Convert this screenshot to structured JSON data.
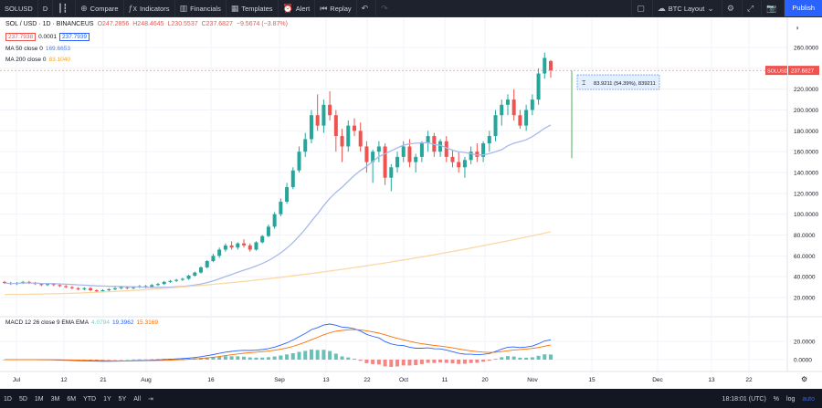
{
  "toolbar": {
    "symbol": "SOLUSD",
    "interval": "D",
    "compare": "Compare",
    "indicators": "Indicators",
    "financials": "Financials",
    "templates": "Templates",
    "alert": "Alert",
    "replay": "Replay",
    "layout": "BTC Layout",
    "publish": "Publish"
  },
  "legend": {
    "title": "SOL / USD · 1D · BINANCEUS",
    "o": "O247.2856",
    "h": "H248.4645",
    "l": "L230.5537",
    "c": "C237.6827",
    "chg": "−9.5674 (−3.87%)",
    "bid": "237.7938",
    "spread": "0.0001",
    "ask": "237.7939",
    "ma50_label": "MA 50 close 0",
    "ma50_value": "169.6653",
    "ma200_label": "MA 200 close 0",
    "ma200_value": "83.1040",
    "macd_label": "MACD 12 26 close 9 EMA EMA",
    "macd_hist": "4.0794",
    "macd_line": "19.3962",
    "macd_signal": "15.3169"
  },
  "price_axis": [
    "260.0000",
    "240.0000",
    "220.0000",
    "200.0000",
    "180.0000",
    "160.0000",
    "140.0000",
    "120.0000",
    "100.0000",
    "80.0000",
    "60.0000",
    "40.0000",
    "20.0000"
  ],
  "macd_axis": [
    "20.0000",
    "0.0000"
  ],
  "price_tag": {
    "symbol": "SOLUSD",
    "value": "237.6827"
  },
  "measure": {
    "text": "83.9211 (54.39%), 839211"
  },
  "time_axis": [
    "Jul",
    "12",
    "21",
    "Aug",
    "16",
    "Sep",
    "13",
    "22",
    "Oct",
    "11",
    "20",
    "Nov",
    "15",
    "Dec",
    "13",
    "22"
  ],
  "ranges": [
    "1D",
    "5D",
    "1M",
    "3M",
    "6M",
    "YTD",
    "1Y",
    "5Y",
    "All"
  ],
  "status": {
    "time": "18:18:01 (UTC)",
    "percent": "%",
    "log": "log",
    "auto": "auto"
  },
  "chart_data": {
    "type": "candlestick",
    "candles": [
      [
        35,
        36,
        33,
        34
      ],
      [
        34,
        35,
        32,
        33
      ],
      [
        33,
        35,
        32,
        34
      ],
      [
        34,
        36,
        33,
        35
      ],
      [
        35,
        36,
        33,
        34
      ],
      [
        34,
        35,
        32,
        33
      ],
      [
        33,
        34,
        31,
        32
      ],
      [
        32,
        34,
        31,
        33
      ],
      [
        33,
        34,
        31,
        32
      ],
      [
        32,
        33,
        30,
        31
      ],
      [
        31,
        32,
        29,
        30
      ],
      [
        30,
        31,
        28,
        29
      ],
      [
        29,
        30,
        27,
        28
      ],
      [
        28,
        30,
        27,
        29
      ],
      [
        29,
        30,
        26,
        27
      ],
      [
        27,
        28,
        25,
        26
      ],
      [
        26,
        28,
        25,
        27
      ],
      [
        27,
        29,
        26,
        28
      ],
      [
        28,
        30,
        27,
        29
      ],
      [
        29,
        31,
        28,
        30
      ],
      [
        30,
        31,
        28,
        29
      ],
      [
        29,
        31,
        28,
        30
      ],
      [
        30,
        32,
        29,
        31
      ],
      [
        31,
        32,
        29,
        30
      ],
      [
        30,
        33,
        29,
        32
      ],
      [
        32,
        34,
        31,
        33
      ],
      [
        33,
        36,
        32,
        35
      ],
      [
        35,
        37,
        34,
        36
      ],
      [
        36,
        38,
        35,
        37
      ],
      [
        37,
        39,
        36,
        38
      ],
      [
        38,
        42,
        37,
        41
      ],
      [
        41,
        45,
        40,
        44
      ],
      [
        44,
        50,
        43,
        49
      ],
      [
        49,
        56,
        48,
        55
      ],
      [
        55,
        62,
        54,
        60
      ],
      [
        60,
        68,
        58,
        66
      ],
      [
        66,
        72,
        64,
        70
      ],
      [
        70,
        74,
        66,
        68
      ],
      [
        68,
        73,
        66,
        72
      ],
      [
        72,
        76,
        68,
        70
      ],
      [
        70,
        72,
        64,
        66
      ],
      [
        66,
        74,
        65,
        73
      ],
      [
        73,
        80,
        72,
        79
      ],
      [
        79,
        90,
        78,
        88
      ],
      [
        88,
        102,
        86,
        100
      ],
      [
        100,
        115,
        98,
        112
      ],
      [
        112,
        130,
        110,
        126
      ],
      [
        126,
        145,
        124,
        142
      ],
      [
        142,
        165,
        140,
        160
      ],
      [
        160,
        178,
        155,
        172
      ],
      [
        172,
        200,
        168,
        195
      ],
      [
        195,
        215,
        180,
        185
      ],
      [
        185,
        210,
        178,
        205
      ],
      [
        205,
        218,
        190,
        195
      ],
      [
        195,
        200,
        160,
        175
      ],
      [
        175,
        182,
        150,
        165
      ],
      [
        165,
        190,
        160,
        185
      ],
      [
        185,
        192,
        175,
        180
      ],
      [
        180,
        188,
        160,
        165
      ],
      [
        165,
        170,
        140,
        150
      ],
      [
        150,
        162,
        130,
        160
      ],
      [
        160,
        170,
        150,
        165
      ],
      [
        165,
        168,
        128,
        135
      ],
      [
        135,
        148,
        122,
        145
      ],
      [
        145,
        160,
        140,
        155
      ],
      [
        155,
        170,
        150,
        165
      ],
      [
        165,
        172,
        145,
        150
      ],
      [
        150,
        158,
        140,
        155
      ],
      [
        155,
        170,
        150,
        168
      ],
      [
        168,
        180,
        160,
        175
      ],
      [
        175,
        178,
        155,
        160
      ],
      [
        160,
        172,
        155,
        170
      ],
      [
        170,
        175,
        150,
        155
      ],
      [
        155,
        162,
        145,
        150
      ],
      [
        150,
        160,
        140,
        145
      ],
      [
        145,
        155,
        135,
        152
      ],
      [
        152,
        165,
        148,
        160
      ],
      [
        160,
        168,
        150,
        155
      ],
      [
        155,
        170,
        150,
        168
      ],
      [
        168,
        180,
        160,
        175
      ],
      [
        175,
        200,
        170,
        195
      ],
      [
        195,
        210,
        185,
        205
      ],
      [
        205,
        215,
        195,
        210
      ],
      [
        210,
        220,
        190,
        195
      ],
      [
        195,
        200,
        182,
        185
      ],
      [
        185,
        205,
        180,
        200
      ],
      [
        200,
        215,
        195,
        210
      ],
      [
        210,
        240,
        205,
        235
      ],
      [
        235,
        255,
        230,
        250
      ],
      [
        247,
        248,
        231,
        238
      ]
    ],
    "ma50_label": "MA 50",
    "ma200_label": "MA 200",
    "ylim": [
      20,
      265
    ]
  }
}
